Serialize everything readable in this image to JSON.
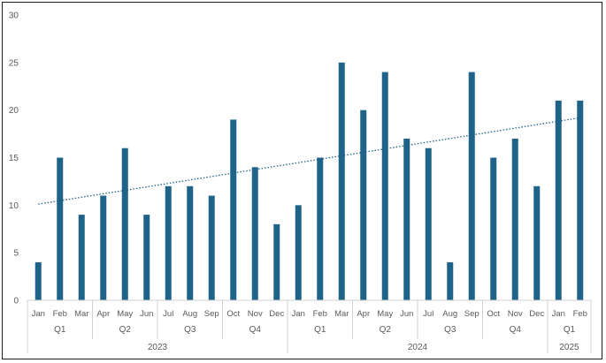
{
  "chart_data": {
    "type": "bar",
    "title": "",
    "xlabel": "",
    "ylabel": "",
    "ylim": [
      0,
      30
    ],
    "yticks": [
      0,
      5,
      10,
      15,
      20,
      25,
      30
    ],
    "grid": false,
    "legend": "none",
    "bar_color": "#1f6388",
    "trendline": {
      "type": "linear",
      "style": "dotted",
      "color": "#1f6388"
    },
    "categories": [
      "Jan",
      "Feb",
      "Mar",
      "Apr",
      "May",
      "Jun",
      "Jul",
      "Aug",
      "Sep",
      "Oct",
      "Nov",
      "Dec",
      "Jan",
      "Feb",
      "Mar",
      "Apr",
      "May",
      "Jun",
      "Jul",
      "Aug",
      "Sep",
      "Oct",
      "Nov",
      "Dec",
      "Jan",
      "Feb"
    ],
    "quarters": [
      {
        "label": "Q1",
        "span": 3
      },
      {
        "label": "Q2",
        "span": 3
      },
      {
        "label": "Q3",
        "span": 3
      },
      {
        "label": "Q4",
        "span": 3
      },
      {
        "label": "Q1",
        "span": 3
      },
      {
        "label": "Q2",
        "span": 3
      },
      {
        "label": "Q3",
        "span": 3
      },
      {
        "label": "Q4",
        "span": 3
      },
      {
        "label": "Q1",
        "span": 2
      }
    ],
    "years": [
      {
        "label": "2023",
        "span": 12
      },
      {
        "label": "2024",
        "span": 12
      },
      {
        "label": "2025",
        "span": 2
      }
    ],
    "values": [
      4,
      15,
      9,
      11,
      16,
      9,
      12,
      12,
      11,
      19,
      14,
      8,
      10,
      15,
      25,
      20,
      24,
      17,
      16,
      4,
      24,
      15,
      17,
      12,
      21,
      21
    ]
  }
}
